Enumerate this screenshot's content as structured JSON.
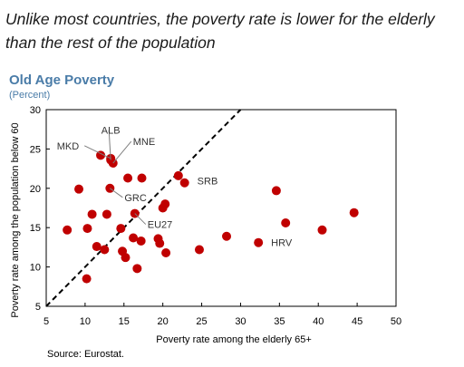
{
  "headline": "Unlike most countries, the poverty rate is lower for the elderly than the rest of the population",
  "source": "Source: Eurostat.",
  "chart_data": {
    "type": "scatter",
    "title": "Old Age Poverty",
    "subtitle": "(Percent)",
    "xlabel": "Poverty rate among the elderly 65+",
    "ylabel": "Poverty rate among the population below 60",
    "xlim": [
      5,
      50
    ],
    "ylim": [
      5,
      30
    ],
    "xticks": [
      5,
      10,
      15,
      20,
      25,
      30,
      35,
      40,
      45,
      50
    ],
    "yticks": [
      5,
      10,
      15,
      20,
      25,
      30
    ],
    "grid": false,
    "reference_line": "y = x",
    "colors": {
      "marker": "#c00000",
      "title": "#4a7ca8",
      "subtitle": "#4a7ca8",
      "axis": "#000000"
    },
    "points": [
      {
        "x": 7.7,
        "y": 14.7
      },
      {
        "x": 9.2,
        "y": 19.9
      },
      {
        "x": 10.2,
        "y": 8.5
      },
      {
        "x": 10.3,
        "y": 14.9
      },
      {
        "x": 10.9,
        "y": 16.7
      },
      {
        "x": 11.5,
        "y": 12.6
      },
      {
        "x": 12.0,
        "y": 24.2
      },
      {
        "x": 12.5,
        "y": 12.2
      },
      {
        "x": 12.8,
        "y": 16.7
      },
      {
        "x": 13.2,
        "y": 20.0
      },
      {
        "x": 13.3,
        "y": 23.8
      },
      {
        "x": 13.6,
        "y": 23.2
      },
      {
        "x": 13.3,
        "y": 23.6
      },
      {
        "x": 14.6,
        "y": 14.9
      },
      {
        "x": 14.8,
        "y": 12.0
      },
      {
        "x": 15.2,
        "y": 11.2
      },
      {
        "x": 15.5,
        "y": 21.3
      },
      {
        "x": 16.2,
        "y": 13.7
      },
      {
        "x": 16.4,
        "y": 16.8
      },
      {
        "x": 16.7,
        "y": 9.8
      },
      {
        "x": 17.2,
        "y": 13.3
      },
      {
        "x": 17.3,
        "y": 21.3
      },
      {
        "x": 19.4,
        "y": 13.6
      },
      {
        "x": 19.6,
        "y": 13.0
      },
      {
        "x": 20.0,
        "y": 17.5
      },
      {
        "x": 20.3,
        "y": 18.0
      },
      {
        "x": 20.4,
        "y": 11.8
      },
      {
        "x": 22.0,
        "y": 21.6
      },
      {
        "x": 22.8,
        "y": 20.7
      },
      {
        "x": 24.7,
        "y": 12.2
      },
      {
        "x": 28.2,
        "y": 13.9
      },
      {
        "x": 32.3,
        "y": 13.1
      },
      {
        "x": 34.6,
        "y": 19.7
      },
      {
        "x": 35.8,
        "y": 15.6
      },
      {
        "x": 40.5,
        "y": 14.7
      },
      {
        "x": 44.6,
        "y": 16.9
      }
    ],
    "annotations": [
      {
        "label": "ALB",
        "x": 13.3,
        "y": 23.6,
        "leader": true
      },
      {
        "label": "MNE",
        "x": 13.6,
        "y": 23.2,
        "leader": true
      },
      {
        "label": "MKD",
        "x": 13.3,
        "y": 23.8,
        "leader": true
      },
      {
        "label": "GRC",
        "x": 13.2,
        "y": 20.0,
        "leader": true
      },
      {
        "label": "SRB",
        "x": 22.8,
        "y": 20.7,
        "leader": false
      },
      {
        "label": "EU27",
        "x": 16.4,
        "y": 16.8,
        "leader": true
      },
      {
        "label": "HRV",
        "x": 32.3,
        "y": 13.1,
        "leader": false
      }
    ]
  }
}
